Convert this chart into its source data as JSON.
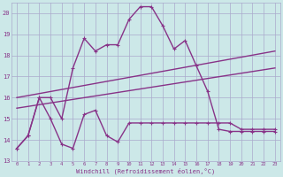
{
  "x_ticks": [
    0,
    1,
    2,
    3,
    4,
    5,
    6,
    7,
    8,
    9,
    10,
    11,
    12,
    13,
    14,
    15,
    16,
    17,
    18,
    19,
    20,
    21,
    22,
    23
  ],
  "line_upper_zigzag": {
    "x": [
      0,
      1,
      2,
      3,
      4,
      5,
      6,
      7,
      8,
      9,
      10,
      11,
      12,
      13,
      14,
      15,
      16,
      17,
      18,
      19,
      20,
      21,
      22,
      23
    ],
    "y": [
      13.6,
      14.2,
      16.0,
      16.0,
      15.0,
      17.4,
      18.8,
      18.2,
      18.5,
      18.5,
      19.7,
      20.3,
      20.3,
      19.4,
      18.3,
      18.7,
      17.5,
      16.3,
      14.5,
      14.4,
      14.4,
      14.4,
      14.4,
      14.4
    ],
    "color": "#993399",
    "lw": 1.0,
    "marker": "+"
  },
  "line_lower_zigzag": {
    "x": [
      0,
      1,
      2,
      3,
      4,
      5,
      6,
      7,
      8,
      9,
      10,
      11,
      12,
      13,
      14,
      15,
      16,
      17,
      18,
      19,
      20,
      21,
      22,
      23
    ],
    "y": [
      13.6,
      14.2,
      16.0,
      15.0,
      13.8,
      13.6,
      15.2,
      15.4,
      14.2,
      13.9,
      14.8,
      14.8,
      14.8,
      14.8,
      14.8,
      14.8,
      14.8,
      14.8,
      14.8,
      14.8,
      14.5,
      14.5,
      14.5,
      14.5
    ],
    "color": "#993399",
    "lw": 1.0,
    "marker": "+"
  },
  "line_straight_upper": {
    "x": [
      0,
      23
    ],
    "y": [
      16.0,
      18.2
    ],
    "color": "#993399",
    "lw": 1.0
  },
  "line_straight_lower": {
    "x": [
      0,
      23
    ],
    "y": [
      15.5,
      17.4
    ],
    "color": "#993399",
    "lw": 1.0
  },
  "ylim": [
    13,
    20.5
  ],
  "xlim": [
    -0.5,
    23.5
  ],
  "yticks": [
    13,
    14,
    15,
    16,
    17,
    18,
    19,
    20
  ],
  "xlabel": "Windchill (Refroidissement éolien,°C)",
  "bg_color": "#cce8e8",
  "grid_color": "#aaaacc",
  "line_color": "#883388",
  "tick_label_color": "#883388",
  "xlabel_color": "#883388"
}
